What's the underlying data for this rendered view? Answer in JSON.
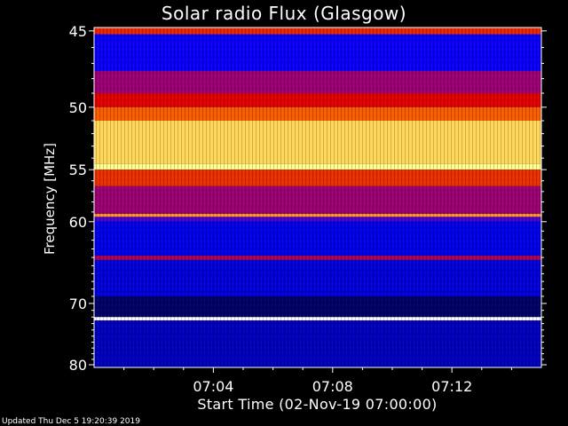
{
  "title": "Solar radio Flux (Glasgow)",
  "updated": "Updated Thu Dec  5 19:20:39 2019",
  "chart_data": {
    "type": "heatmap",
    "title": "Solar radio Flux (Glasgow)",
    "xlabel": "Start Time (02-Nov-19 07:00:00)",
    "ylabel": "Frequency [MHz]",
    "x_ticks": [
      "07:04",
      "07:08",
      "07:12"
    ],
    "x_tick_values_min": [
      4,
      8,
      12
    ],
    "xlim_min": [
      0,
      15
    ],
    "y_ticks": [
      45,
      50,
      55,
      60,
      70,
      80
    ],
    "ylim": [
      44.8,
      80.5
    ],
    "y_scale": "reciprocal",
    "grid": false,
    "colormap": [
      "#000010",
      "#0000ff",
      "#8000a0",
      "#e00000",
      "#ff8000",
      "#ffff80",
      "#ffffff"
    ],
    "bands_mhz": [
      {
        "from": 44.8,
        "to": 45.2,
        "level": 0.55
      },
      {
        "from": 45.2,
        "to": 47.5,
        "level": 0.18
      },
      {
        "from": 47.5,
        "to": 49.0,
        "level": 0.38
      },
      {
        "from": 49.0,
        "to": 50.0,
        "level": 0.5
      },
      {
        "from": 50.0,
        "to": 51.0,
        "level": 0.62
      },
      {
        "from": 51.0,
        "to": 54.5,
        "level": 0.78
      },
      {
        "from": 54.5,
        "to": 55.0,
        "level": 0.85
      },
      {
        "from": 55.0,
        "to": 56.5,
        "level": 0.56
      },
      {
        "from": 56.5,
        "to": 59.2,
        "level": 0.38
      },
      {
        "from": 59.2,
        "to": 59.5,
        "level": 0.7
      },
      {
        "from": 59.5,
        "to": 60.0,
        "level": 0.26
      },
      {
        "from": 60.0,
        "to": 63.8,
        "level": 0.15
      },
      {
        "from": 63.8,
        "to": 64.3,
        "level": 0.42
      },
      {
        "from": 64.3,
        "to": 69.0,
        "level": 0.14
      },
      {
        "from": 69.0,
        "to": 72.0,
        "level": 0.06
      },
      {
        "from": 72.0,
        "to": 72.5,
        "level": 0.98
      },
      {
        "from": 72.5,
        "to": 80.5,
        "level": 0.12
      }
    ]
  }
}
